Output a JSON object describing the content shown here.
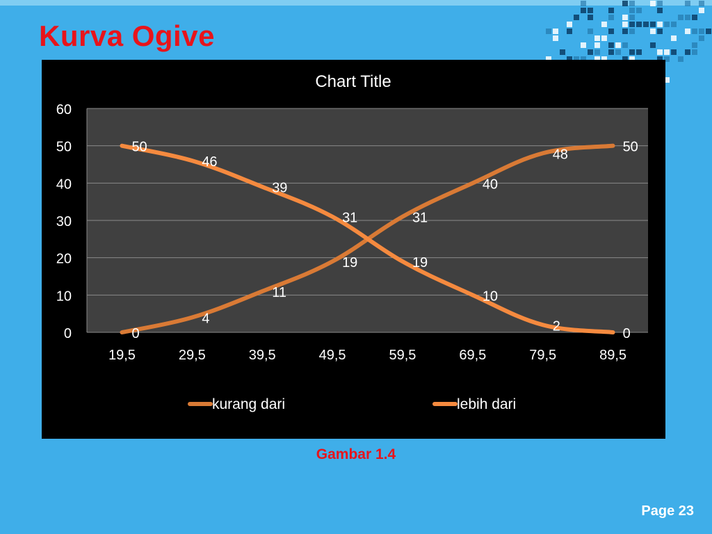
{
  "slide": {
    "title": "Kurva Ogive",
    "caption": "Gambar 1.4",
    "page": "Page 23"
  },
  "colors": {
    "background": "#3faee9",
    "title": "#e8141b",
    "chart_bg": "#000000",
    "plot_bg": "#404040",
    "series_kurang": "#d97a35",
    "series_lebih": "#f58a3f"
  },
  "chart_data": {
    "type": "line",
    "title": "Chart Title",
    "categories": [
      "19,5",
      "29,5",
      "39,5",
      "49,5",
      "59,5",
      "69,5",
      "79,5",
      "89,5"
    ],
    "series": [
      {
        "name": "kurang dari",
        "values": [
          0,
          4,
          11,
          19,
          31,
          40,
          48,
          50
        ]
      },
      {
        "name": "lebih dari",
        "values": [
          50,
          46,
          39,
          31,
          19,
          10,
          2,
          0
        ]
      }
    ],
    "ylim": [
      0,
      60
    ],
    "yticks": [
      0,
      10,
      20,
      30,
      40,
      50,
      60
    ],
    "grid": true,
    "legend": "bottom",
    "data_labels": true
  }
}
